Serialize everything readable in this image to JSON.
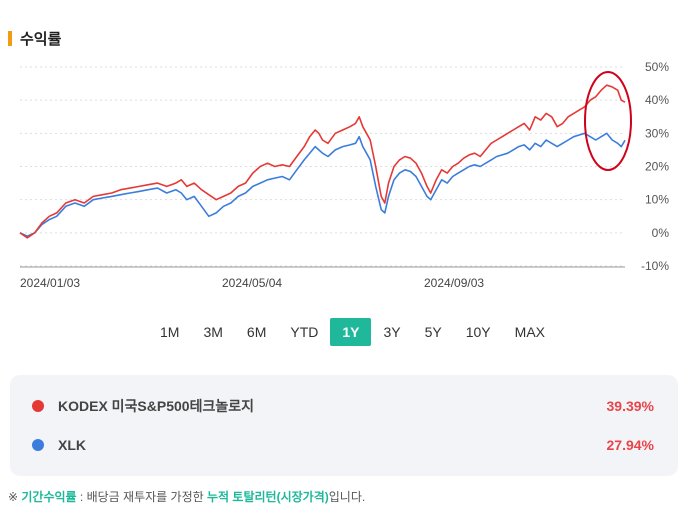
{
  "header": {
    "title": "수익률"
  },
  "periods": [
    "1M",
    "3M",
    "6M",
    "YTD",
    "1Y",
    "3Y",
    "5Y",
    "10Y",
    "MAX"
  ],
  "active_period": "1Y",
  "colors": {
    "kodex": "#e53935",
    "xlk": "#3b7ddd",
    "accent": "#1fb89a",
    "annotation": "#d0021b"
  },
  "legend": [
    {
      "name": "KODEX 미국S&P500테크놀로지",
      "value": "39.39%",
      "color": "#e53935"
    },
    {
      "name": "XLK",
      "value": "27.94%",
      "color": "#3b7ddd"
    }
  ],
  "note": {
    "prefix": "※ ",
    "term": "기간수익률",
    "middle": " : 배당금 재투자를 가정한 ",
    "highlight": "누적 토탈리턴(시장가격)",
    "suffix": "입니다."
  },
  "chart_data": {
    "type": "line",
    "y_ticks": [
      "50%",
      "40%",
      "30%",
      "20%",
      "10%",
      "0%",
      "-10%"
    ],
    "x_ticks": [
      "2024/01/03",
      "2024/05/04",
      "2024/09/03"
    ],
    "ylim": [
      -10,
      50
    ],
    "grid": true,
    "series": [
      {
        "name": "KODEX 미국S&P500테크놀로지",
        "color": "#e53935",
        "points": [
          [
            0,
            0
          ],
          [
            4,
            -1.5
          ],
          [
            8,
            0
          ],
          [
            12,
            3
          ],
          [
            16,
            5
          ],
          [
            20,
            6
          ],
          [
            25,
            9
          ],
          [
            30,
            10
          ],
          [
            35,
            9
          ],
          [
            40,
            11
          ],
          [
            45,
            11.5
          ],
          [
            50,
            12
          ],
          [
            55,
            13
          ],
          [
            60,
            13.5
          ],
          [
            65,
            14
          ],
          [
            70,
            14.5
          ],
          [
            75,
            15
          ],
          [
            80,
            14
          ],
          [
            85,
            15
          ],
          [
            88,
            16
          ],
          [
            91,
            14
          ],
          [
            95,
            15
          ],
          [
            99,
            13
          ],
          [
            103,
            11.5
          ],
          [
            107,
            10
          ],
          [
            111,
            11
          ],
          [
            115,
            12
          ],
          [
            119,
            14
          ],
          [
            123,
            15
          ],
          [
            127,
            18
          ],
          [
            131,
            20
          ],
          [
            135,
            21
          ],
          [
            139,
            20
          ],
          [
            143,
            20.5
          ],
          [
            147,
            20
          ],
          [
            151,
            23
          ],
          [
            155,
            26
          ],
          [
            158,
            29
          ],
          [
            161,
            31
          ],
          [
            163,
            30
          ],
          [
            165,
            28
          ],
          [
            168,
            27
          ],
          [
            172,
            30
          ],
          [
            176,
            31
          ],
          [
            180,
            32
          ],
          [
            183,
            33
          ],
          [
            185,
            35
          ],
          [
            187,
            32
          ],
          [
            189,
            30
          ],
          [
            191,
            28
          ],
          [
            194,
            20
          ],
          [
            197,
            11
          ],
          [
            199,
            9
          ],
          [
            201,
            15
          ],
          [
            204,
            20
          ],
          [
            207,
            22
          ],
          [
            210,
            23
          ],
          [
            213,
            22.5
          ],
          [
            216,
            21
          ],
          [
            219,
            18
          ],
          [
            222,
            14
          ],
          [
            224,
            12
          ],
          [
            227,
            16
          ],
          [
            230,
            19
          ],
          [
            233,
            18
          ],
          [
            236,
            20
          ],
          [
            239,
            21
          ],
          [
            242,
            22.5
          ],
          [
            245,
            23.5
          ],
          [
            248,
            24
          ],
          [
            251,
            23
          ],
          [
            254,
            25
          ],
          [
            257,
            27
          ],
          [
            260,
            28
          ],
          [
            263,
            29
          ],
          [
            266,
            30
          ],
          [
            269,
            31
          ],
          [
            272,
            32
          ],
          [
            275,
            33
          ],
          [
            278,
            31
          ],
          [
            281,
            35
          ],
          [
            284,
            34
          ],
          [
            287,
            36
          ],
          [
            290,
            35
          ],
          [
            293,
            32
          ],
          [
            296,
            33
          ],
          [
            299,
            35
          ],
          [
            302,
            36
          ],
          [
            305,
            37
          ],
          [
            308,
            38
          ],
          [
            311,
            40
          ],
          [
            314,
            41
          ],
          [
            317,
            43
          ],
          [
            320,
            44.5
          ],
          [
            323,
            44
          ],
          [
            326,
            43
          ],
          [
            328,
            40
          ],
          [
            330,
            39.4
          ]
        ]
      },
      {
        "name": "XLK",
        "color": "#3b7ddd",
        "points": [
          [
            0,
            0
          ],
          [
            4,
            -1
          ],
          [
            8,
            0
          ],
          [
            12,
            2.5
          ],
          [
            16,
            4
          ],
          [
            20,
            5
          ],
          [
            25,
            8
          ],
          [
            30,
            9
          ],
          [
            35,
            8
          ],
          [
            40,
            10
          ],
          [
            45,
            10.5
          ],
          [
            50,
            11
          ],
          [
            55,
            11.5
          ],
          [
            60,
            12
          ],
          [
            65,
            12.5
          ],
          [
            70,
            13
          ],
          [
            75,
            13.5
          ],
          [
            80,
            12
          ],
          [
            85,
            13
          ],
          [
            88,
            12
          ],
          [
            91,
            10
          ],
          [
            95,
            11
          ],
          [
            99,
            8
          ],
          [
            103,
            5
          ],
          [
            107,
            6
          ],
          [
            111,
            8
          ],
          [
            115,
            9
          ],
          [
            119,
            11
          ],
          [
            123,
            12
          ],
          [
            127,
            14
          ],
          [
            131,
            15
          ],
          [
            135,
            16
          ],
          [
            139,
            16.5
          ],
          [
            143,
            17
          ],
          [
            147,
            16
          ],
          [
            151,
            19
          ],
          [
            155,
            22
          ],
          [
            158,
            24
          ],
          [
            161,
            26
          ],
          [
            163,
            25
          ],
          [
            165,
            24
          ],
          [
            168,
            23
          ],
          [
            172,
            25
          ],
          [
            176,
            26
          ],
          [
            180,
            26.5
          ],
          [
            183,
            27
          ],
          [
            185,
            29
          ],
          [
            187,
            26
          ],
          [
            189,
            24
          ],
          [
            191,
            22
          ],
          [
            194,
            14
          ],
          [
            197,
            7
          ],
          [
            199,
            6
          ],
          [
            201,
            11
          ],
          [
            204,
            16
          ],
          [
            207,
            18
          ],
          [
            210,
            19
          ],
          [
            213,
            18.5
          ],
          [
            216,
            17
          ],
          [
            219,
            14
          ],
          [
            222,
            11
          ],
          [
            224,
            10
          ],
          [
            227,
            13
          ],
          [
            230,
            16
          ],
          [
            233,
            15
          ],
          [
            236,
            17
          ],
          [
            239,
            18
          ],
          [
            242,
            19
          ],
          [
            245,
            20
          ],
          [
            248,
            20.5
          ],
          [
            251,
            20
          ],
          [
            254,
            21
          ],
          [
            257,
            22
          ],
          [
            260,
            23
          ],
          [
            263,
            23.5
          ],
          [
            266,
            24
          ],
          [
            269,
            25
          ],
          [
            272,
            26
          ],
          [
            275,
            26.5
          ],
          [
            278,
            25
          ],
          [
            281,
            27
          ],
          [
            284,
            26
          ],
          [
            287,
            28
          ],
          [
            290,
            27
          ],
          [
            293,
            26
          ],
          [
            296,
            27
          ],
          [
            299,
            28
          ],
          [
            302,
            29
          ],
          [
            305,
            29.5
          ],
          [
            308,
            30
          ],
          [
            311,
            29
          ],
          [
            314,
            28
          ],
          [
            317,
            29
          ],
          [
            320,
            30
          ],
          [
            323,
            28
          ],
          [
            326,
            27
          ],
          [
            328,
            26
          ],
          [
            330,
            27.9
          ]
        ]
      }
    ],
    "x_range": [
      0,
      330
    ]
  }
}
